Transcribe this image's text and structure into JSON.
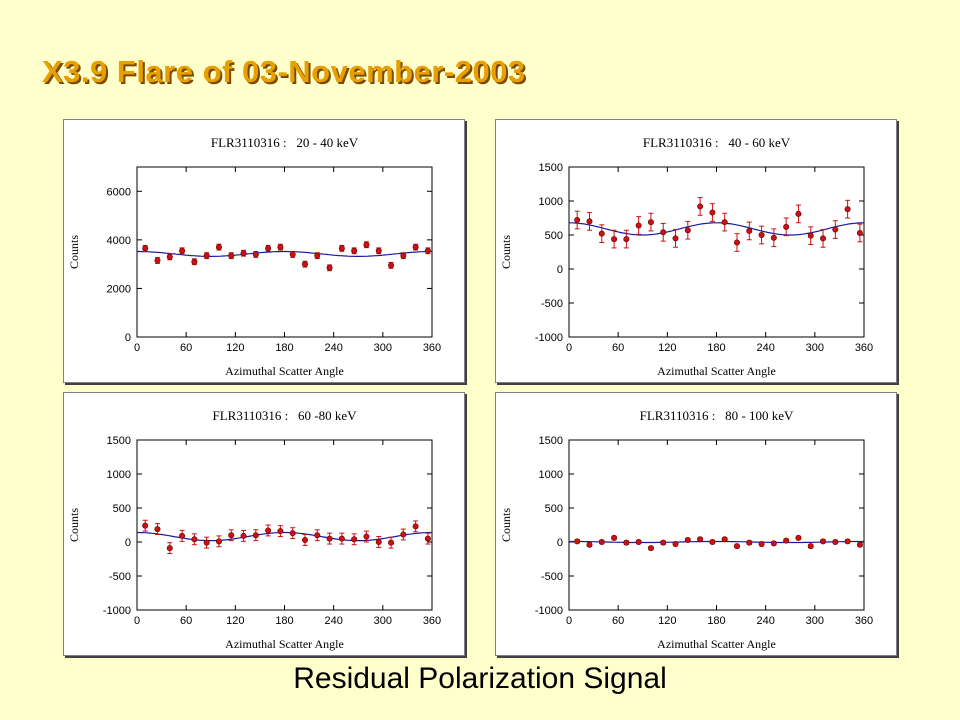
{
  "slide": {
    "title": "X3.9 Flare of 03-November-2003",
    "caption": "Residual Polarization Signal"
  },
  "colors": {
    "background": "#ffffcc",
    "title": "#e8a000",
    "title_shadow": "#7a4a00",
    "marker": "#cc1111",
    "errorbar": "#cc1111",
    "fit": "#1a1aa0"
  },
  "chart_data": [
    {
      "type": "scatter",
      "title": "FLR3110316 :   20 - 40 keV",
      "xlabel": "Azimuthal Scatter Angle",
      "ylabel": "Counts",
      "xlim": [
        0,
        360
      ],
      "ylim": [
        0,
        7000
      ],
      "xticks": [
        0,
        60,
        120,
        180,
        240,
        300,
        360
      ],
      "yticks": [
        0,
        2000,
        4000,
        6000
      ],
      "grid": false,
      "legend": "none",
      "x": [
        10,
        25,
        40,
        55,
        70,
        85,
        100,
        115,
        130,
        145,
        160,
        175,
        190,
        205,
        220,
        235,
        250,
        265,
        280,
        295,
        310,
        325,
        340,
        355
      ],
      "y": [
        3650,
        3150,
        3300,
        3550,
        3100,
        3350,
        3700,
        3350,
        3450,
        3400,
        3650,
        3700,
        3400,
        3000,
        3350,
        2850,
        3650,
        3550,
        3800,
        3550,
        2950,
        3350,
        3700,
        3550
      ],
      "err": [
        120,
        120,
        120,
        120,
        120,
        120,
        120,
        120,
        120,
        120,
        120,
        120,
        120,
        120,
        120,
        120,
        120,
        120,
        120,
        120,
        120,
        120,
        120,
        120
      ],
      "fit": {
        "mean": 3420,
        "amplitude": 100,
        "phase_deg": 0
      }
    },
    {
      "type": "scatter",
      "title": "FLR3110316 :   40 - 60 keV",
      "xlabel": "Azimuthal Scatter Angle",
      "ylabel": "Counts",
      "xlim": [
        0,
        360
      ],
      "ylim": [
        -1000,
        1500
      ],
      "xticks": [
        0,
        60,
        120,
        180,
        240,
        300,
        360
      ],
      "yticks": [
        -1000,
        -500,
        0,
        500,
        1000,
        1500
      ],
      "grid": false,
      "legend": "none",
      "x": [
        10,
        25,
        40,
        55,
        70,
        85,
        100,
        115,
        130,
        145,
        160,
        175,
        190,
        205,
        220,
        235,
        250,
        265,
        280,
        295,
        310,
        325,
        340,
        355
      ],
      "y": [
        720,
        700,
        520,
        440,
        440,
        640,
        690,
        540,
        450,
        570,
        920,
        830,
        690,
        390,
        560,
        500,
        460,
        620,
        810,
        490,
        450,
        580,
        880,
        530
      ],
      "err": [
        130,
        130,
        130,
        130,
        130,
        130,
        130,
        130,
        130,
        130,
        130,
        130,
        130,
        130,
        130,
        130,
        130,
        130,
        130,
        130,
        130,
        130,
        130,
        130
      ],
      "fit": {
        "mean": 590,
        "amplitude": 90,
        "phase_deg": 180
      }
    },
    {
      "type": "scatter",
      "title": "FLR3110316 :   60 -80 keV",
      "xlabel": "Azimuthal Scatter Angle",
      "ylabel": "Counts",
      "xlim": [
        0,
        360
      ],
      "ylim": [
        -1000,
        1500
      ],
      "xticks": [
        0,
        60,
        120,
        180,
        240,
        300,
        360
      ],
      "yticks": [
        -1000,
        -500,
        0,
        500,
        1000,
        1500
      ],
      "grid": false,
      "legend": "none",
      "x": [
        10,
        25,
        40,
        55,
        70,
        85,
        100,
        115,
        130,
        145,
        160,
        175,
        190,
        205,
        220,
        235,
        250,
        265,
        280,
        295,
        310,
        325,
        340,
        355
      ],
      "y": [
        240,
        190,
        -90,
        90,
        40,
        -10,
        10,
        100,
        90,
        100,
        170,
        160,
        130,
        30,
        100,
        50,
        50,
        40,
        80,
        0,
        -10,
        110,
        230,
        50
      ],
      "err": [
        80,
        80,
        80,
        80,
        80,
        80,
        80,
        80,
        80,
        80,
        80,
        80,
        80,
        80,
        80,
        80,
        80,
        80,
        80,
        80,
        80,
        80,
        80,
        80
      ],
      "fit": {
        "mean": 80,
        "amplitude": 60,
        "phase_deg": 0
      }
    },
    {
      "type": "scatter",
      "title": "FLR3110316 :   80 - 100 keV",
      "xlabel": "Azimuthal Scatter Angle",
      "ylabel": "Counts",
      "xlim": [
        0,
        360
      ],
      "ylim": [
        -1000,
        1500
      ],
      "xticks": [
        0,
        60,
        120,
        180,
        240,
        300,
        360
      ],
      "yticks": [
        -1000,
        -500,
        0,
        500,
        1000,
        1500
      ],
      "grid": false,
      "legend": "none",
      "x": [
        10,
        25,
        40,
        55,
        70,
        85,
        100,
        115,
        130,
        145,
        160,
        175,
        190,
        205,
        220,
        235,
        250,
        265,
        280,
        295,
        310,
        325,
        340,
        355
      ],
      "y": [
        10,
        -40,
        0,
        60,
        -10,
        0,
        -90,
        -10,
        -30,
        30,
        40,
        0,
        40,
        -60,
        -10,
        -30,
        -20,
        20,
        60,
        -60,
        10,
        0,
        10,
        -40
      ],
      "err": [
        25,
        25,
        25,
        25,
        25,
        25,
        25,
        25,
        25,
        25,
        25,
        25,
        25,
        25,
        25,
        25,
        25,
        25,
        25,
        25,
        25,
        25,
        25,
        25
      ],
      "fit": {
        "mean": 0,
        "amplitude": 8,
        "phase_deg": 0
      }
    }
  ]
}
